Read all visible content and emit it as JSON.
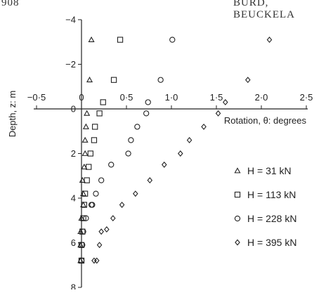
{
  "header": {
    "left": "908",
    "right": "BURD, BEUCKELA"
  },
  "chart_data": {
    "type": "scatter",
    "title": "",
    "xlabel": "Rotation, θ: degrees",
    "ylabel": "Depth, z: m",
    "xlim": [
      -0.5,
      2.5
    ],
    "ylim": [
      -4,
      8
    ],
    "y_inverted": true,
    "x_ticks": [
      -0.5,
      0,
      0.5,
      1.0,
      1.5,
      2.0,
      2.5
    ],
    "x_tick_labels": [
      "−0·5",
      "0",
      "0·5",
      "1·0",
      "1·5",
      "2·0",
      "2·5"
    ],
    "y_ticks": [
      -4,
      -2,
      0,
      2,
      4,
      6,
      8
    ],
    "y_tick_labels": [
      "−4",
      "−2",
      "0",
      "2",
      "4",
      "6",
      "8"
    ],
    "grid": false,
    "legend_position": "right",
    "series": [
      {
        "name": "H = 31 kN",
        "marker": "triangle",
        "points": [
          {
            "x": 0.11,
            "y": -3.1
          },
          {
            "x": 0.09,
            "y": -1.3
          },
          {
            "x": 0.06,
            "y": 0.2
          },
          {
            "x": 0.05,
            "y": 0.8
          },
          {
            "x": 0.04,
            "y": 1.4
          },
          {
            "x": 0.04,
            "y": 2.0
          },
          {
            "x": 0.03,
            "y": 2.6
          },
          {
            "x": 0.01,
            "y": 3.2
          },
          {
            "x": 0.02,
            "y": 3.8
          },
          {
            "x": 0.02,
            "y": 4.3
          },
          {
            "x": 0.0,
            "y": 4.9
          },
          {
            "x": -0.01,
            "y": 5.5
          },
          {
            "x": -0.01,
            "y": 6.1
          },
          {
            "x": -0.01,
            "y": 6.8
          }
        ]
      },
      {
        "name": "H = 113 kN",
        "marker": "square",
        "points": [
          {
            "x": 0.43,
            "y": -3.1
          },
          {
            "x": 0.36,
            "y": -1.3
          },
          {
            "x": 0.24,
            "y": -0.3
          },
          {
            "x": 0.2,
            "y": 0.2
          },
          {
            "x": 0.15,
            "y": 0.8
          },
          {
            "x": 0.14,
            "y": 1.4
          },
          {
            "x": 0.1,
            "y": 2.0
          },
          {
            "x": 0.08,
            "y": 2.6
          },
          {
            "x": 0.06,
            "y": 3.2
          },
          {
            "x": 0.04,
            "y": 3.8
          },
          {
            "x": 0.03,
            "y": 4.3
          },
          {
            "x": 0.02,
            "y": 4.9
          },
          {
            "x": 0.01,
            "y": 5.5
          },
          {
            "x": 0.0,
            "y": 6.1
          },
          {
            "x": 0.0,
            "y": 6.8
          }
        ]
      },
      {
        "name": "H = 228 kN",
        "marker": "circle",
        "points": [
          {
            "x": 1.01,
            "y": -3.1
          },
          {
            "x": 0.88,
            "y": -1.3
          },
          {
            "x": 0.74,
            "y": -0.3
          },
          {
            "x": 0.72,
            "y": 0.2
          },
          {
            "x": 0.62,
            "y": 0.8
          },
          {
            "x": 0.55,
            "y": 1.4
          },
          {
            "x": 0.52,
            "y": 2.0
          },
          {
            "x": 0.33,
            "y": 2.5
          },
          {
            "x": 0.22,
            "y": 3.2
          },
          {
            "x": 0.16,
            "y": 3.8
          },
          {
            "x": 0.12,
            "y": 4.3
          },
          {
            "x": 0.11,
            "y": 4.3
          },
          {
            "x": 0.05,
            "y": 4.9
          },
          {
            "x": 0.02,
            "y": 5.5
          },
          {
            "x": 0.01,
            "y": 6.1
          },
          {
            "x": 0.0,
            "y": 6.8
          }
        ]
      },
      {
        "name": "H = 395 kN",
        "marker": "diamond",
        "points": [
          {
            "x": 2.09,
            "y": -3.1
          },
          {
            "x": 1.85,
            "y": -1.3
          },
          {
            "x": 1.6,
            "y": -0.3
          },
          {
            "x": 1.52,
            "y": 0.2
          },
          {
            "x": 1.36,
            "y": 0.8
          },
          {
            "x": 1.2,
            "y": 1.4
          },
          {
            "x": 1.1,
            "y": 2.0
          },
          {
            "x": 0.92,
            "y": 2.5
          },
          {
            "x": 0.76,
            "y": 3.2
          },
          {
            "x": 0.6,
            "y": 3.8
          },
          {
            "x": 0.45,
            "y": 4.3
          },
          {
            "x": 0.35,
            "y": 4.9
          },
          {
            "x": 0.28,
            "y": 5.4
          },
          {
            "x": 0.22,
            "y": 5.5
          },
          {
            "x": 0.2,
            "y": 6.1
          },
          {
            "x": 0.17,
            "y": 6.8
          },
          {
            "x": 0.14,
            "y": 6.8
          }
        ]
      }
    ],
    "marker_color": "#222222"
  }
}
